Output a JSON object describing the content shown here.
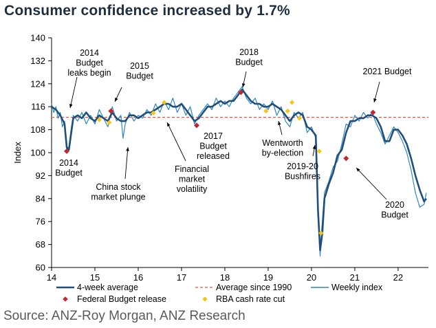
{
  "title": "Consumer confidence increased by 1.7%",
  "source": "Source: ANZ-Roy Morgan, ANZ Research",
  "colors": {
    "avg4": "#1f4e79",
    "weekly": "#2e86c1",
    "longavg": "#e8553a",
    "budget": "#c0282d",
    "rba": "#f5c518"
  },
  "chart_data": {
    "type": "line",
    "ylabel": "Index",
    "ylim": [
      60,
      140
    ],
    "yticks": [
      "60",
      "68",
      "76",
      "84",
      "92",
      "100",
      "108",
      "116",
      "124",
      "132",
      "140"
    ],
    "xlim": [
      14,
      22.7
    ],
    "xticks": [
      "14",
      "15",
      "16",
      "17",
      "18",
      "19",
      "20",
      "21",
      "22"
    ],
    "long_run_average": 112.3,
    "series": [
      {
        "name": "4-week average",
        "x": [
          14.0,
          14.1,
          14.2,
          14.3,
          14.35,
          14.4,
          14.5,
          14.6,
          14.7,
          14.8,
          14.9,
          15.0,
          15.1,
          15.2,
          15.3,
          15.4,
          15.5,
          15.6,
          15.7,
          15.8,
          15.9,
          16.0,
          16.1,
          16.2,
          16.3,
          16.4,
          16.5,
          16.6,
          16.7,
          16.8,
          16.9,
          17.0,
          17.1,
          17.2,
          17.3,
          17.4,
          17.5,
          17.6,
          17.7,
          17.8,
          17.9,
          18.0,
          18.1,
          18.2,
          18.3,
          18.4,
          18.5,
          18.6,
          18.7,
          18.8,
          18.9,
          19.0,
          19.1,
          19.2,
          19.3,
          19.4,
          19.5,
          19.6,
          19.7,
          19.8,
          19.9,
          20.0,
          20.1,
          20.15,
          20.2,
          20.25,
          20.3,
          20.4,
          20.5,
          20.6,
          20.7,
          20.8,
          20.9,
          21.0,
          21.1,
          21.2,
          21.3,
          21.4,
          21.5,
          21.6,
          21.7,
          21.8,
          21.9,
          22.0,
          22.1,
          22.2,
          22.3,
          22.4,
          22.5,
          22.6,
          22.65
        ],
        "y": [
          116,
          115,
          113,
          110,
          102,
          101,
          112,
          113,
          112,
          114,
          112,
          111,
          113,
          112,
          111,
          114,
          112,
          111,
          111,
          113,
          113,
          112,
          113,
          114,
          114,
          115,
          116,
          117,
          117,
          116,
          116,
          117,
          115,
          113,
          111,
          112,
          114,
          116,
          116,
          117,
          118,
          117,
          118,
          118,
          120,
          122,
          120,
          118,
          117,
          117,
          116,
          116,
          117,
          116,
          115,
          113,
          111,
          113,
          114,
          113,
          109,
          108,
          106,
          80,
          66,
          72,
          84,
          89,
          93,
          99,
          101,
          107,
          111,
          111,
          112,
          112,
          113,
          113,
          112,
          109,
          104,
          104,
          108,
          108,
          106,
          103,
          98,
          92,
          87,
          83,
          84
        ]
      },
      {
        "name": "Weekly index",
        "x": [
          14.0,
          14.05,
          14.1,
          14.15,
          14.2,
          14.25,
          14.3,
          14.35,
          14.4,
          14.45,
          14.5,
          14.6,
          14.7,
          14.8,
          14.9,
          15.0,
          15.1,
          15.2,
          15.3,
          15.4,
          15.5,
          15.6,
          15.65,
          15.7,
          15.8,
          15.9,
          16.0,
          16.1,
          16.2,
          16.3,
          16.4,
          16.5,
          16.6,
          16.7,
          16.8,
          16.9,
          17.0,
          17.1,
          17.2,
          17.3,
          17.4,
          17.5,
          17.6,
          17.7,
          17.8,
          17.9,
          18.0,
          18.1,
          18.2,
          18.3,
          18.4,
          18.5,
          18.6,
          18.7,
          18.8,
          18.9,
          19.0,
          19.1,
          19.2,
          19.3,
          19.4,
          19.5,
          19.6,
          19.7,
          19.8,
          19.9,
          20.0,
          20.1,
          20.15,
          20.2,
          20.22,
          20.25,
          20.3,
          20.4,
          20.5,
          20.6,
          20.7,
          20.8,
          20.9,
          21.0,
          21.1,
          21.2,
          21.3,
          21.4,
          21.5,
          21.6,
          21.7,
          21.8,
          21.9,
          22.0,
          22.1,
          22.2,
          22.3,
          22.4,
          22.5,
          22.6,
          22.65
        ],
        "y": [
          117,
          114,
          116,
          112,
          114,
          109,
          111,
          100,
          102,
          108,
          113,
          111,
          114,
          110,
          113,
          110,
          115,
          112,
          109,
          116,
          111,
          113,
          105,
          110,
          114,
          111,
          113,
          112,
          115,
          113,
          117,
          114,
          118,
          115,
          119,
          114,
          117,
          113,
          116,
          110,
          113,
          115,
          117,
          115,
          119,
          116,
          118,
          116,
          119,
          121,
          123,
          119,
          117,
          119,
          115,
          117,
          115,
          118,
          113,
          116,
          111,
          109,
          114,
          112,
          114,
          107,
          109,
          105,
          78,
          64,
          70,
          76,
          86,
          90,
          95,
          97,
          103,
          110,
          109,
          113,
          111,
          114,
          112,
          114,
          110,
          107,
          103,
          106,
          109,
          107,
          104,
          100,
          94,
          86,
          81,
          82,
          86
        ]
      }
    ],
    "federal_budget_release": [
      {
        "x": 14.35,
        "y": 100.5
      },
      {
        "x": 15.37,
        "y": 114.5
      },
      {
        "x": 17.35,
        "y": 109.5
      },
      {
        "x": 18.37,
        "y": 121
      },
      {
        "x": 20.8,
        "y": 98
      },
      {
        "x": 21.42,
        "y": 114
      }
    ],
    "rba_cash_rate_cut": [
      {
        "x": 15.1,
        "y": 111.5
      },
      {
        "x": 15.33,
        "y": 110.5
      },
      {
        "x": 16.35,
        "y": 113.8
      },
      {
        "x": 16.6,
        "y": 117.5
      },
      {
        "x": 18.95,
        "y": 114.5
      },
      {
        "x": 19.45,
        "y": 114.5
      },
      {
        "x": 19.55,
        "y": 117.5
      },
      {
        "x": 19.72,
        "y": 112
      },
      {
        "x": 20.18,
        "y": 100.5
      },
      {
        "x": 20.22,
        "y": 72
      }
    ],
    "annotations": [
      {
        "id": "b2014leak",
        "lines": [
          "2014",
          "Budget",
          "leaks begin"
        ]
      },
      {
        "id": "b2014",
        "lines": [
          "2014",
          "Budget"
        ]
      },
      {
        "id": "b2015",
        "lines": [
          "2015",
          "Budget"
        ]
      },
      {
        "id": "china",
        "lines": [
          "China stock",
          "market plunge"
        ]
      },
      {
        "id": "fin",
        "lines": [
          "Financial",
          "market",
          "volatility"
        ]
      },
      {
        "id": "b2017",
        "lines": [
          "2017",
          "Budget",
          "released"
        ]
      },
      {
        "id": "b2018",
        "lines": [
          "2018",
          "Budget"
        ]
      },
      {
        "id": "went",
        "lines": [
          "Wentworth",
          "by-election"
        ]
      },
      {
        "id": "bush",
        "lines": [
          "2019-20",
          "Bushfires"
        ]
      },
      {
        "id": "b2021",
        "lines": [
          "2021 Budget"
        ]
      },
      {
        "id": "b2020",
        "lines": [
          "2020",
          "Budget"
        ]
      }
    ],
    "legend": [
      "4-week average",
      "Average since 1990",
      "Weekly index",
      "Federal Budget release",
      "RBA cash rate cut"
    ]
  }
}
